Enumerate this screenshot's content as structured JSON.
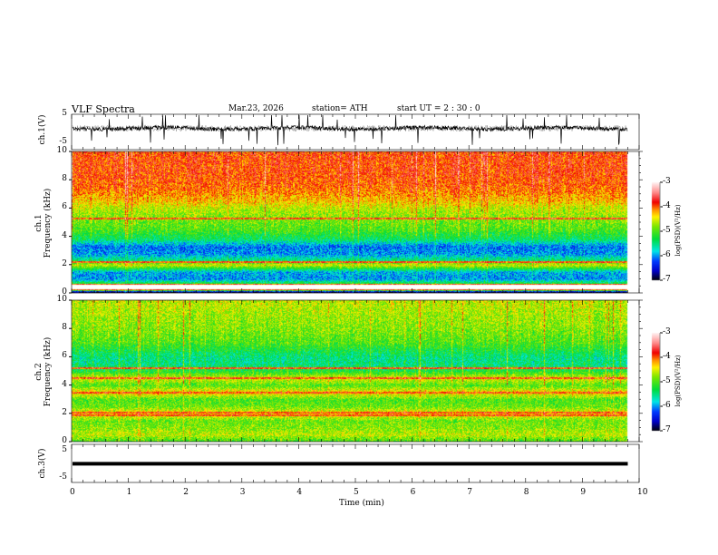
{
  "header": {
    "title": "VLF  Spectra",
    "date": "Mar.23, 2026",
    "station": "station= ATH",
    "start": "start  UT  =   2  : 30 : 0"
  },
  "chart_data": [
    {
      "type": "line",
      "name": "ch1 waveform",
      "ylabel": "ch.1(V)",
      "ylim": [
        -5,
        5
      ],
      "yticks": [
        "5",
        "-5"
      ],
      "xlim": [
        0,
        10
      ],
      "data_end_min": 9.8,
      "baseline": 0,
      "noise_amplitude": 1,
      "spike_amplitude": 5
    },
    {
      "type": "heatmap",
      "name": "ch1 spectrogram",
      "ylabel_lines": [
        "ch.1",
        "Frequency  (kHz)"
      ],
      "ylim": [
        0,
        10
      ],
      "yticks": [
        "0",
        "2",
        "4",
        "6",
        "8",
        "10"
      ],
      "xlim": [
        0,
        10
      ],
      "freq_profile_khz": [
        0.1,
        0.3,
        0.6,
        1.0,
        1.5,
        2.0,
        2.3,
        2.8,
        3.3,
        3.8,
        4.5,
        5.3,
        6.0,
        6.5,
        7.5,
        8.5,
        9.5
      ],
      "log_psd_profile": [
        -6.9,
        -3.0,
        -5.0,
        -6.0,
        -5.9,
        -4.5,
        -5.4,
        -6.0,
        -6.1,
        -5.4,
        -5.0,
        -4.8,
        -4.6,
        -4.3,
        -4.0,
        -3.9,
        -3.9
      ],
      "lines_khz": [
        0.6,
        2.2,
        5.3
      ],
      "colorbar": {
        "label": "log(PSD)(V²/Hz)",
        "ticks": [
          "-3",
          "-4",
          "-5",
          "-6",
          "-7"
        ],
        "range": [
          -7,
          -3
        ]
      }
    },
    {
      "type": "heatmap",
      "name": "ch2 spectrogram",
      "ylabel_lines": [
        "ch.2",
        "Frequency  (kHz)"
      ],
      "ylim": [
        0,
        10
      ],
      "yticks": [
        "0",
        "2",
        "4",
        "6",
        "8",
        "10"
      ],
      "xlim": [
        0,
        10
      ],
      "freq_profile_khz": [
        0.1,
        0.5,
        1.0,
        1.5,
        2.0,
        2.5,
        3.0,
        3.5,
        4.0,
        4.5,
        5.0,
        5.5,
        6.0,
        7.0,
        8.0,
        9.0,
        9.8
      ],
      "log_psd_profile": [
        -5.0,
        -4.6,
        -4.8,
        -4.9,
        -4.3,
        -4.9,
        -5.0,
        -4.3,
        -5.0,
        -4.5,
        -5.2,
        -5.5,
        -5.5,
        -5.0,
        -4.8,
        -4.7,
        -4.6
      ],
      "lines_khz": [
        1.9,
        2.1,
        3.5,
        4.5,
        5.2
      ],
      "colorbar": {
        "label": "log(PSD)(V²/Hz)",
        "ticks": [
          "-3",
          "-4",
          "-5",
          "-6",
          "-7"
        ],
        "range": [
          -7,
          -3
        ]
      }
    },
    {
      "type": "line",
      "name": "ch3 waveform",
      "ylabel": "ch.3(V)",
      "ylim": [
        -5,
        5
      ],
      "yticks": [
        "5",
        "-5"
      ],
      "xlim": [
        0,
        10
      ],
      "data_end_min": 9.8,
      "baseline": 0.2
    }
  ],
  "xaxis": {
    "label": "Time  (min)",
    "ticks": [
      "0",
      "1",
      "2",
      "3",
      "4",
      "5",
      "6",
      "7",
      "8",
      "9",
      "10"
    ]
  }
}
